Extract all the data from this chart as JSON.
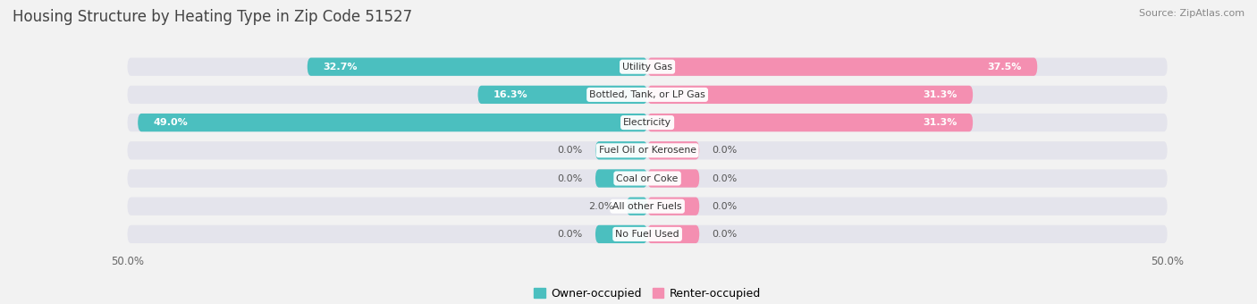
{
  "title": "Housing Structure by Heating Type in Zip Code 51527",
  "source": "Source: ZipAtlas.com",
  "categories": [
    "Utility Gas",
    "Bottled, Tank, or LP Gas",
    "Electricity",
    "Fuel Oil or Kerosene",
    "Coal or Coke",
    "All other Fuels",
    "No Fuel Used"
  ],
  "owner_values": [
    32.7,
    16.3,
    49.0,
    0.0,
    0.0,
    2.0,
    0.0
  ],
  "renter_values": [
    37.5,
    31.3,
    31.3,
    0.0,
    0.0,
    0.0,
    0.0
  ],
  "owner_color": "#4bbfbf",
  "renter_color": "#f48fb1",
  "owner_label": "Owner-occupied",
  "renter_label": "Renter-occupied",
  "background_color": "#f2f2f2",
  "bar_bg_color": "#e4e4ec",
  "title_fontsize": 12,
  "source_fontsize": 8,
  "zero_stub": 5.0,
  "axis_range": 50
}
